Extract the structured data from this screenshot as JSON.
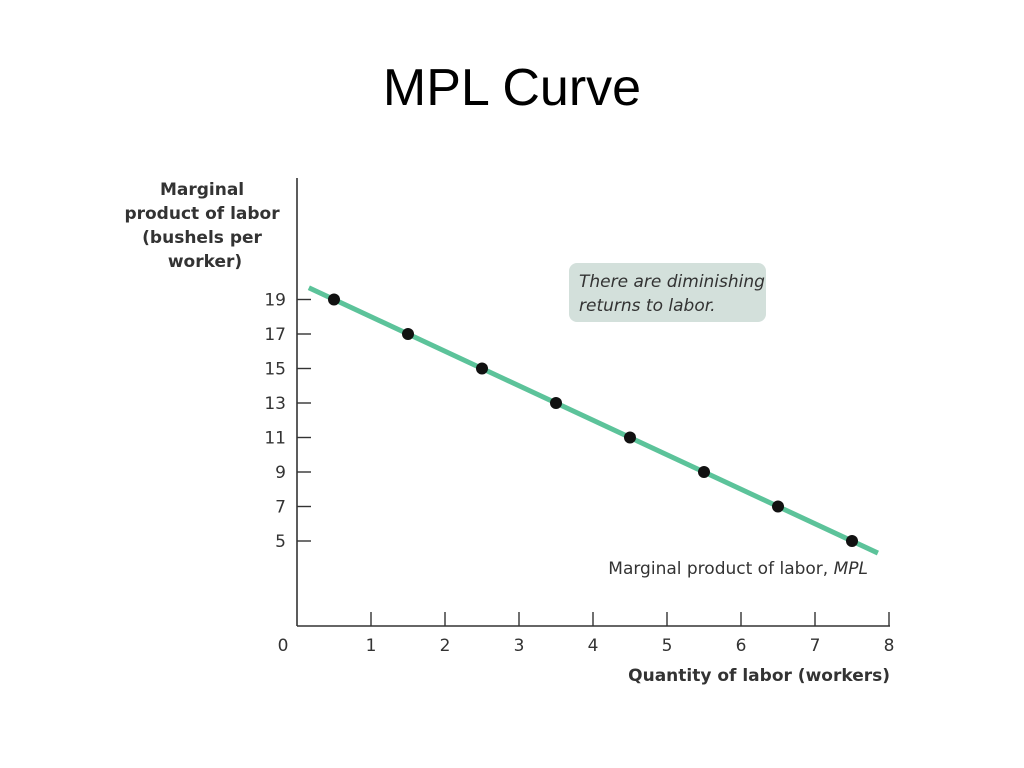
{
  "slide": {
    "title": "MPL Curve"
  },
  "chart_data": {
    "type": "line",
    "xlabel": "Quantity of labor (workers)",
    "ylabel_lines": [
      "Marginal",
      "product of labor",
      "(bushels per",
      "worker)"
    ],
    "x_ticks": [
      0,
      1,
      2,
      3,
      4,
      5,
      6,
      7,
      8
    ],
    "y_ticks": [
      5,
      7,
      9,
      11,
      13,
      15,
      17,
      19
    ],
    "xlim": [
      0,
      8
    ],
    "series": [
      {
        "name": "Marginal product of labor, MPL",
        "name_prefix": "Marginal product of labor, ",
        "name_symbol": "MPL",
        "color": "#5cc39a",
        "x": [
          0.5,
          1.5,
          2.5,
          3.5,
          4.5,
          5.5,
          6.5,
          7.5
        ],
        "y": [
          19,
          17,
          15,
          13,
          11,
          9,
          7,
          5
        ]
      }
    ],
    "annotation": {
      "lines": [
        "There are diminishing",
        "returns to labor."
      ],
      "background": "#d3e0db"
    },
    "grid": false,
    "point_color": "#111111"
  }
}
